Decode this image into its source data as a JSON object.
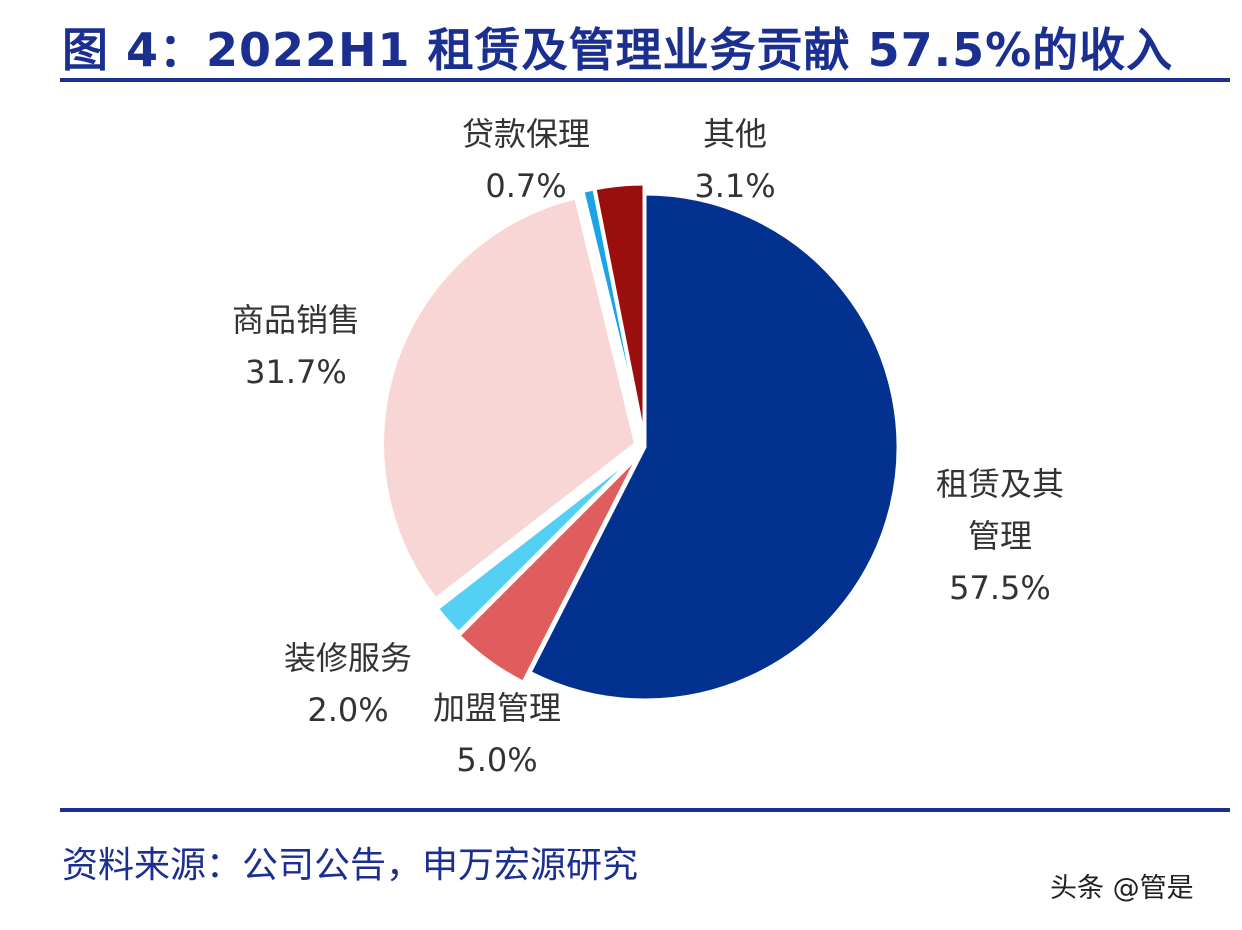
{
  "chart_data": {
    "type": "pie",
    "title": "图 4：2022H1 租赁及管理业务贡献 57.5%的收入",
    "slices": [
      {
        "name": "租赁及其管理",
        "name_lines": [
          "租赁及其",
          "管理"
        ],
        "value": 57.5,
        "value_label": "57.5%",
        "color": "#03318f",
        "explode": 0
      },
      {
        "name": "加盟管理",
        "name_lines": [
          "加盟管理"
        ],
        "value": 5.0,
        "value_label": "5.0%",
        "color": "#e05d5d",
        "explode": 12
      },
      {
        "name": "装修服务",
        "name_lines": [
          "装修服务"
        ],
        "value": 2.0,
        "value_label": "2.0%",
        "color": "#55d0f5",
        "explode": 10
      },
      {
        "name": "商品销售",
        "name_lines": [
          "商品销售"
        ],
        "value": 31.7,
        "value_label": "31.7%",
        "color": "#f8d6d6",
        "explode": 10
      },
      {
        "name": "贷款保理",
        "name_lines": [
          "贷款保理"
        ],
        "value": 0.7,
        "value_label": "0.7%",
        "color": "#1aa3e8",
        "explode": 10
      },
      {
        "name": "其他",
        "name_lines": [
          "其他"
        ],
        "value": 3.1,
        "value_label": "3.1%",
        "color": "#9a0e0e",
        "explode": 10
      }
    ]
  },
  "footer": {
    "source": "资料来源：公司公告，申万宏源研究",
    "watermark": "头条 @管是"
  }
}
